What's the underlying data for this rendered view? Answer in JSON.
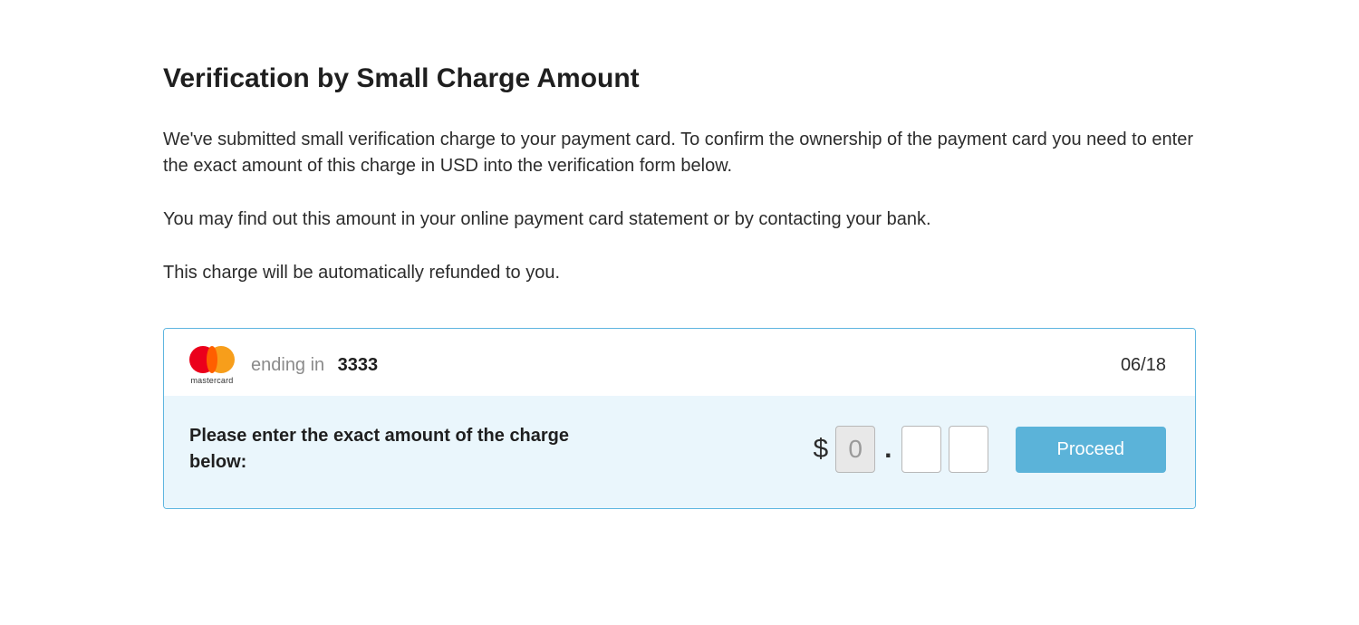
{
  "title": "Verification by Small Charge Amount",
  "paragraphs": {
    "p1": "We've submitted small verification charge to your payment card. To confirm the ownership of the payment card you need to enter the exact amount of this charge in USD into the verification form below.",
    "p2": "You may find out this amount in your online payment card statement or by contacting your bank.",
    "p3": "This charge will be automatically refunded to you."
  },
  "card": {
    "brand_label": "mastercard",
    "ending_in_label": "ending in",
    "last4": "3333",
    "expiry": "06/18",
    "logo_colors": {
      "left": "#eb001b",
      "right": "#f79e1b",
      "mid": "#ff5f00"
    }
  },
  "form": {
    "prompt": "Please enter the exact amount of the charge below:",
    "currency_symbol": "$",
    "dollars_value": "0",
    "decimal_separator": ".",
    "cents_d1": "",
    "cents_d2": "",
    "proceed_label": "Proceed"
  },
  "colors": {
    "panel_border": "#5fb6e0",
    "panel_form_bg": "#eaf6fc",
    "button_bg": "#5bb3d9",
    "button_text": "#ffffff",
    "text": "#2c2c2c",
    "muted": "#8a8a8a",
    "disabled_bg": "#e8e8e8",
    "input_border": "#b8b8b8",
    "background": "#ffffff"
  }
}
